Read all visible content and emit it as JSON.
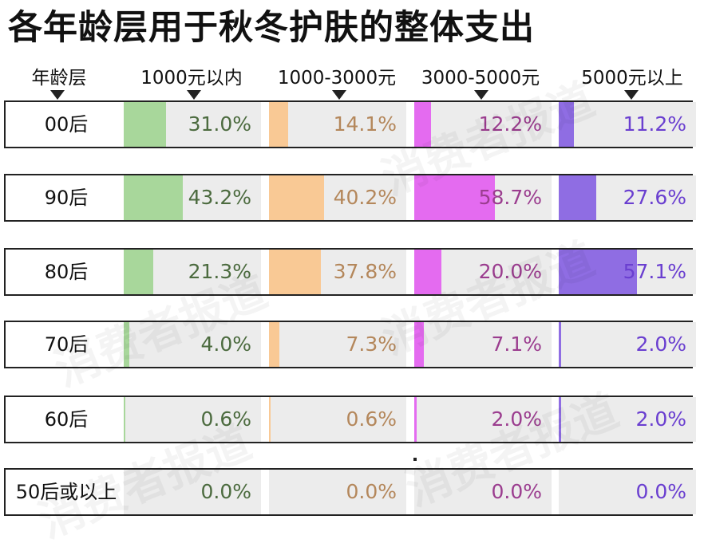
{
  "title": "各年龄层用于秋冬护肤的整体支出",
  "header": {
    "age_label": "年龄层",
    "categories": [
      "1000元以内",
      "1000-3000元",
      "3000-5000元",
      "5000元以上"
    ]
  },
  "colors": {
    "fills": [
      "#a8d79b",
      "#f9c995",
      "#e46bf0",
      "#8f6de3"
    ],
    "texts": [
      "#4c6b3f",
      "#b4875b",
      "#9b3d8f",
      "#6a3fd0"
    ],
    "track": "#ececec"
  },
  "watermark": "消费者报道",
  "rows": [
    {
      "age": "00后",
      "labels": [
        "31.0%",
        "14.1%",
        "12.2%",
        "11.2%"
      ]
    },
    {
      "age": "90后",
      "labels": [
        "43.2%",
        "40.2%",
        "58.7%",
        "27.6%"
      ]
    },
    {
      "age": "80后",
      "labels": [
        "21.3%",
        "37.8%",
        "20.0%",
        "57.1%"
      ]
    },
    {
      "age": "70后",
      "labels": [
        "4.0%",
        "7.3%",
        "7.1%",
        "2.0%"
      ]
    },
    {
      "age": "60后",
      "labels": [
        "0.6%",
        "0.6%",
        "2.0%",
        "2.0%"
      ]
    },
    {
      "age": "50后或以上",
      "labels": [
        "0.0%",
        "0.0%",
        "0.0%",
        "0.0%"
      ]
    }
  ],
  "chart_data": {
    "type": "bar",
    "title": "各年龄层用于秋冬护肤的整体支出",
    "xlabel": "",
    "ylabel": "年龄层",
    "categories": [
      "00后",
      "90后",
      "80后",
      "70后",
      "60后",
      "50后或以上"
    ],
    "series": [
      {
        "name": "1000元以内",
        "values": [
          31.0,
          43.2,
          21.3,
          4.0,
          0.6,
          0.0
        ]
      },
      {
        "name": "1000-3000元",
        "values": [
          14.1,
          40.2,
          37.8,
          7.3,
          0.6,
          0.0
        ]
      },
      {
        "name": "3000-5000元",
        "values": [
          12.2,
          58.7,
          20.0,
          7.1,
          2.0,
          0.0
        ]
      },
      {
        "name": "5000元以上",
        "values": [
          11.2,
          27.6,
          57.1,
          2.0,
          2.0,
          0.0
        ]
      }
    ],
    "ylim": [
      0,
      100
    ]
  }
}
